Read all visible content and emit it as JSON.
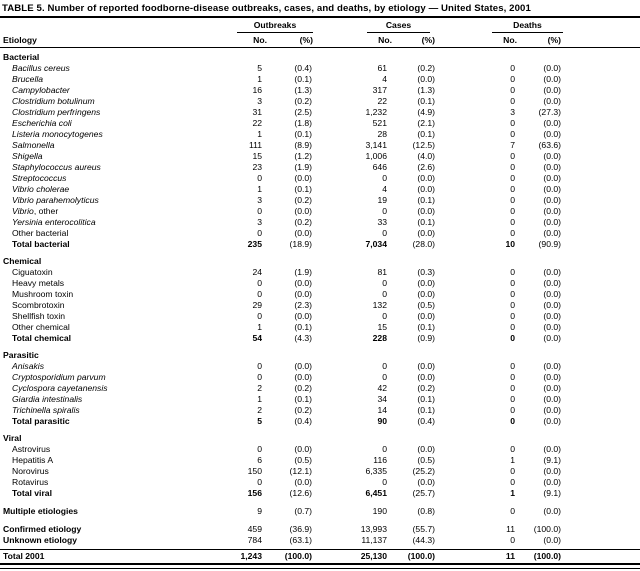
{
  "title": "TABLE 5. Number of reported foodborne-disease outbreaks, cases, and deaths, by etiology — United States, 2001",
  "chart_data": {
    "type": "table",
    "title": "TABLE 5. Number of reported foodborne-disease outbreaks, cases, and deaths, by etiology — United States, 2001",
    "column_groups": [
      "Outbreaks",
      "Cases",
      "Deaths"
    ],
    "columns": [
      "Etiology",
      "No.",
      "(%)",
      "No.",
      "(%)",
      "No.",
      "(%)"
    ],
    "sections": [
      {
        "header": "Bacterial",
        "rows": [
          {
            "etiology": "Bacillus cereus",
            "italic": true,
            "values": [
              "5",
              "(0.4)",
              "61",
              "(0.2)",
              "0",
              "(0.0)"
            ]
          },
          {
            "etiology": "Brucella",
            "italic": true,
            "values": [
              "1",
              "(0.1)",
              "4",
              "(0.0)",
              "0",
              "(0.0)"
            ]
          },
          {
            "etiology": "Campylobacter",
            "italic": true,
            "values": [
              "16",
              "(1.3)",
              "317",
              "(1.3)",
              "0",
              "(0.0)"
            ]
          },
          {
            "etiology": "Clostridium botulinum",
            "italic": true,
            "values": [
              "3",
              "(0.2)",
              "22",
              "(0.1)",
              "0",
              "(0.0)"
            ]
          },
          {
            "etiology": "Clostridium perfringens",
            "italic": true,
            "values": [
              "31",
              "(2.5)",
              "1,232",
              "(4.9)",
              "3",
              "(27.3)"
            ]
          },
          {
            "etiology": "Escherichia coli",
            "italic": true,
            "values": [
              "22",
              "(1.8)",
              "521",
              "(2.1)",
              "0",
              "(0.0)"
            ]
          },
          {
            "etiology": "Listeria monocytogenes",
            "italic": true,
            "values": [
              "1",
              "(0.1)",
              "28",
              "(0.1)",
              "0",
              "(0.0)"
            ]
          },
          {
            "etiology": "Salmonella",
            "italic": true,
            "values": [
              "111",
              "(8.9)",
              "3,141",
              "(12.5)",
              "7",
              "(63.6)"
            ]
          },
          {
            "etiology": "Shigella",
            "italic": true,
            "values": [
              "15",
              "(1.2)",
              "1,006",
              "(4.0)",
              "0",
              "(0.0)"
            ]
          },
          {
            "etiology": "Staphylococcus aureus",
            "italic": true,
            "values": [
              "23",
              "(1.9)",
              "646",
              "(2.6)",
              "0",
              "(0.0)"
            ]
          },
          {
            "etiology": "Streptococcus",
            "italic": true,
            "values": [
              "0",
              "(0.0)",
              "0",
              "(0.0)",
              "0",
              "(0.0)"
            ]
          },
          {
            "etiology": "Vibrio cholerae",
            "italic": true,
            "values": [
              "1",
              "(0.1)",
              "4",
              "(0.0)",
              "0",
              "(0.0)"
            ]
          },
          {
            "etiology": "Vibrio parahemolyticus",
            "italic": true,
            "values": [
              "3",
              "(0.2)",
              "19",
              "(0.1)",
              "0",
              "(0.0)"
            ]
          },
          {
            "etiology": "Vibrio",
            "roman_suffix": ", other",
            "italic": true,
            "values": [
              "0",
              "(0.0)",
              "0",
              "(0.0)",
              "0",
              "(0.0)"
            ]
          },
          {
            "etiology": "Yersinia enterocolitica",
            "italic": true,
            "values": [
              "3",
              "(0.2)",
              "33",
              "(0.1)",
              "0",
              "(0.0)"
            ]
          },
          {
            "etiology": "Other bacterial",
            "italic": false,
            "values": [
              "0",
              "(0.0)",
              "0",
              "(0.0)",
              "0",
              "(0.0)"
            ]
          },
          {
            "etiology": "Total bacterial",
            "italic": false,
            "total": true,
            "values": [
              "235",
              "(18.9)",
              "7,034",
              "(28.0)",
              "10",
              "(90.9)"
            ]
          }
        ]
      },
      {
        "header": "Chemical",
        "rows": [
          {
            "etiology": "Ciguatoxin",
            "italic": false,
            "values": [
              "24",
              "(1.9)",
              "81",
              "(0.3)",
              "0",
              "(0.0)"
            ]
          },
          {
            "etiology": "Heavy metals",
            "italic": false,
            "values": [
              "0",
              "(0.0)",
              "0",
              "(0.0)",
              "0",
              "(0.0)"
            ]
          },
          {
            "etiology": "Mushroom toxin",
            "italic": false,
            "values": [
              "0",
              "(0.0)",
              "0",
              "(0.0)",
              "0",
              "(0.0)"
            ]
          },
          {
            "etiology": "Scombrotoxin",
            "italic": false,
            "values": [
              "29",
              "(2.3)",
              "132",
              "(0.5)",
              "0",
              "(0.0)"
            ]
          },
          {
            "etiology": "Shellfish toxin",
            "italic": false,
            "values": [
              "0",
              "(0.0)",
              "0",
              "(0.0)",
              "0",
              "(0.0)"
            ]
          },
          {
            "etiology": "Other chemical",
            "italic": false,
            "values": [
              "1",
              "(0.1)",
              "15",
              "(0.1)",
              "0",
              "(0.0)"
            ]
          },
          {
            "etiology": "Total chemical",
            "italic": false,
            "total": true,
            "values": [
              "54",
              "(4.3)",
              "228",
              "(0.9)",
              "0",
              "(0.0)"
            ]
          }
        ]
      },
      {
        "header": "Parasitic",
        "rows": [
          {
            "etiology": "Anisakis",
            "italic": true,
            "values": [
              "0",
              "(0.0)",
              "0",
              "(0.0)",
              "0",
              "(0.0)"
            ]
          },
          {
            "etiology": "Cryptosporidium parvum",
            "italic": true,
            "values": [
              "0",
              "(0.0)",
              "0",
              "(0.0)",
              "0",
              "(0.0)"
            ]
          },
          {
            "etiology": "Cyclospora cayetanensis",
            "italic": true,
            "values": [
              "2",
              "(0.2)",
              "42",
              "(0.2)",
              "0",
              "(0.0)"
            ]
          },
          {
            "etiology": "Giardia intestinalis",
            "italic": true,
            "values": [
              "1",
              "(0.1)",
              "34",
              "(0.1)",
              "0",
              "(0.0)"
            ]
          },
          {
            "etiology": "Trichinella spiralis",
            "italic": true,
            "values": [
              "2",
              "(0.2)",
              "14",
              "(0.1)",
              "0",
              "(0.0)"
            ]
          },
          {
            "etiology": "Total parasitic",
            "italic": false,
            "total": true,
            "values": [
              "5",
              "(0.4)",
              "90",
              "(0.4)",
              "0",
              "(0.0)"
            ]
          }
        ]
      },
      {
        "header": "Viral",
        "rows": [
          {
            "etiology": "Astrovirus",
            "italic": false,
            "values": [
              "0",
              "(0.0)",
              "0",
              "(0.0)",
              "0",
              "(0.0)"
            ]
          },
          {
            "etiology": "Hepatitis A",
            "italic": false,
            "values": [
              "6",
              "(0.5)",
              "116",
              "(0.5)",
              "1",
              "(9.1)"
            ]
          },
          {
            "etiology": "Norovirus",
            "italic": false,
            "values": [
              "150",
              "(12.1)",
              "6,335",
              "(25.2)",
              "0",
              "(0.0)"
            ]
          },
          {
            "etiology": "Rotavirus",
            "italic": false,
            "values": [
              "0",
              "(0.0)",
              "0",
              "(0.0)",
              "0",
              "(0.0)"
            ]
          },
          {
            "etiology": "Total viral",
            "italic": false,
            "total": true,
            "values": [
              "156",
              "(12.6)",
              "6,451",
              "(25.7)",
              "1",
              "(9.1)"
            ]
          }
        ]
      }
    ],
    "standalone_rows": [
      {
        "etiology": "Multiple etiologies",
        "gap_before": true,
        "values": [
          "9",
          "(0.7)",
          "190",
          "(0.8)",
          "0",
          "(0.0)"
        ]
      },
      {
        "etiology": "Confirmed etiology",
        "gap_before": true,
        "values": [
          "459",
          "(36.9)",
          "13,993",
          "(55.7)",
          "11",
          "(100.0)"
        ]
      },
      {
        "etiology": "Unknown etiology",
        "gap_before": false,
        "values": [
          "784",
          "(63.1)",
          "11,137",
          "(44.3)",
          "0",
          "(0.0)"
        ]
      }
    ],
    "total_row": {
      "etiology": "Total 2001",
      "values": [
        "1,243",
        "(100.0)",
        "25,130",
        "(100.0)",
        "11",
        "(100.0)"
      ]
    }
  }
}
